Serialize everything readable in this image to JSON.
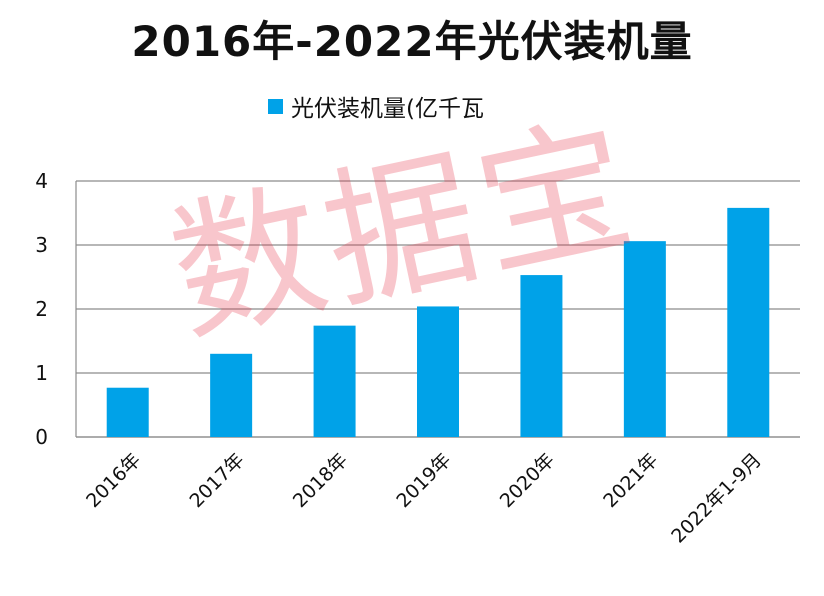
{
  "chart_data": {
    "type": "bar",
    "title": "2016年-2022年光伏装机量",
    "categories": [
      "2016年",
      "2017年",
      "2018年",
      "2019年",
      "2020年",
      "2021年",
      "2022年1-9月"
    ],
    "series": [
      {
        "name": "光伏装机量(亿千瓦",
        "values": [
          0.77,
          1.3,
          1.74,
          2.04,
          2.53,
          3.06,
          3.58
        ]
      }
    ],
    "ylim": [
      0,
      4
    ],
    "yticks": [
      "0",
      "1",
      "2",
      "3",
      "4"
    ],
    "grid": true,
    "legend_position": "top-center",
    "bar_color": "#00a2e8",
    "grid_color": "#8c8c8c"
  },
  "watermark": "数据宝"
}
